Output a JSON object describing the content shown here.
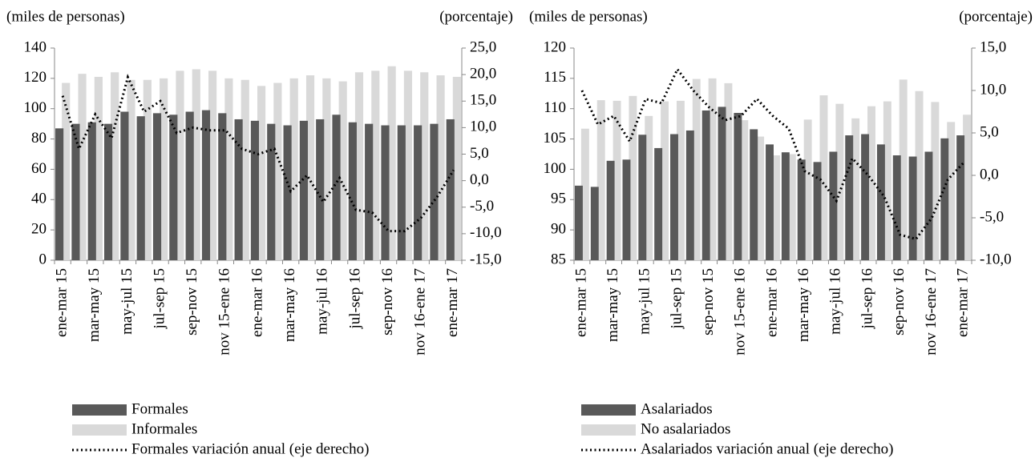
{
  "chart_data": [
    {
      "type": "bar_line",
      "y_label": "(miles de personas)",
      "y2_label": "(porcentaje)",
      "categories": [
        "ene-mar 15",
        null,
        "mar-may 15",
        null,
        "may-jul 15",
        null,
        "jul-sep 15",
        null,
        "sep-nov 15",
        null,
        "nov 15-ene 16",
        null,
        "ene-mar 16",
        null,
        "mar-may 16",
        null,
        "may-jul 16",
        null,
        "jul-sep 16",
        null,
        "sep-nov 16",
        null,
        "nov 16-ene 17",
        null,
        "ene-mar 17"
      ],
      "series": [
        {
          "name": "Formales",
          "color": "#595959",
          "kind": "bar",
          "values": [
            87,
            90,
            91,
            90,
            98,
            95,
            97,
            96,
            98,
            99,
            97,
            93,
            92,
            90,
            89,
            92,
            93,
            96,
            91,
            90,
            89,
            89,
            89,
            90,
            93
          ]
        },
        {
          "name": "Informales",
          "color": "#d9d9d9",
          "kind": "bar",
          "values": [
            117,
            123,
            121,
            124,
            119,
            119,
            120,
            125,
            126,
            125,
            120,
            119,
            115,
            117,
            120,
            122,
            120,
            118,
            124,
            125,
            128,
            125,
            124,
            122,
            121
          ]
        },
        {
          "name": "Formales variación anual (eje derecho)",
          "color": "#000000",
          "kind": "line",
          "axis": "y2",
          "values": [
            16,
            6,
            12.5,
            8,
            19.5,
            13,
            15,
            9,
            10,
            9.5,
            9.5,
            6,
            5,
            6,
            -2,
            1,
            -4,
            0.5,
            -5.5,
            -6,
            -9.5,
            -9.5,
            -7,
            -3,
            2
          ]
        }
      ],
      "ylim": [
        0,
        140
      ],
      "yticks": [
        0,
        20,
        40,
        60,
        80,
        100,
        120,
        140
      ],
      "y2lim": [
        -15,
        25
      ],
      "y2ticks": [
        {
          "value": -15,
          "label": "-15,0"
        },
        {
          "value": -10,
          "label": "-10,0"
        },
        {
          "value": -5,
          "label": "-5,0"
        },
        {
          "value": 0,
          "label": "0,0"
        },
        {
          "value": 5,
          "label": "5,0"
        },
        {
          "value": 10,
          "label": "10,0"
        },
        {
          "value": 15,
          "label": "15,0"
        },
        {
          "value": 20,
          "label": "20,0"
        },
        {
          "value": 25,
          "label": "25,0"
        }
      ]
    },
    {
      "type": "bar_line",
      "y_label": "(miles de personas)",
      "y2_label": "(porcentaje)",
      "categories": [
        "ene-mar 15",
        null,
        "mar-may 15",
        null,
        "may-jul 15",
        null,
        "jul-sep 15",
        null,
        "sep-nov 15",
        null,
        "nov 15-ene 16",
        null,
        "ene-mar 16",
        null,
        "mar-may 16",
        null,
        "may-jul 16",
        null,
        "jul-sep 16",
        null,
        "sep-nov 16",
        null,
        "nov 16-ene 17",
        null,
        "ene-mar 17"
      ],
      "series": [
        {
          "name": "Asalariados",
          "color": "#595959",
          "kind": "bar",
          "values": [
            97.3,
            97.1,
            101.4,
            101.6,
            105.7,
            103.5,
            105.8,
            106.4,
            109.7,
            110.3,
            109.3,
            106.6,
            104.1,
            102.8,
            101.6,
            101.2,
            102.9,
            105.6,
            105.8,
            104.1,
            102.3,
            102.1,
            102.9,
            105.1,
            105.6
          ]
        },
        {
          "name": "No asalariados",
          "color": "#d9d9d9",
          "kind": "bar",
          "values": [
            106.7,
            111.4,
            111.3,
            112.1,
            108.8,
            111.2,
            111.3,
            114.9,
            115.0,
            114.2,
            108.1,
            105.4,
            102.3,
            102.5,
            108.2,
            112.2,
            110.8,
            108.4,
            110.4,
            111.2,
            114.8,
            112.9,
            111.1,
            107.8,
            109.0
          ]
        },
        {
          "name": "Asalariados variación anual (eje derecho)",
          "color": "#000000",
          "kind": "line",
          "axis": "y2",
          "values": [
            10,
            6,
            7,
            4,
            9,
            8.5,
            12.5,
            10,
            8,
            6.5,
            7,
            9,
            7,
            5.5,
            0.5,
            -0.5,
            -3,
            2,
            0,
            -2.5,
            -7,
            -7.5,
            -5,
            -0.5,
            1.5
          ]
        }
      ],
      "ylim": [
        85,
        120
      ],
      "yticks": [
        85,
        90,
        95,
        100,
        105,
        110,
        115,
        120
      ],
      "y2lim": [
        -10,
        15
      ],
      "y2ticks": [
        {
          "value": -10,
          "label": "-10,0"
        },
        {
          "value": -5,
          "label": "-5,0"
        },
        {
          "value": 0,
          "label": "0,0"
        },
        {
          "value": 5,
          "label": "5,0"
        },
        {
          "value": 10,
          "label": "10,0"
        },
        {
          "value": 15,
          "label": "15,0"
        }
      ]
    }
  ]
}
